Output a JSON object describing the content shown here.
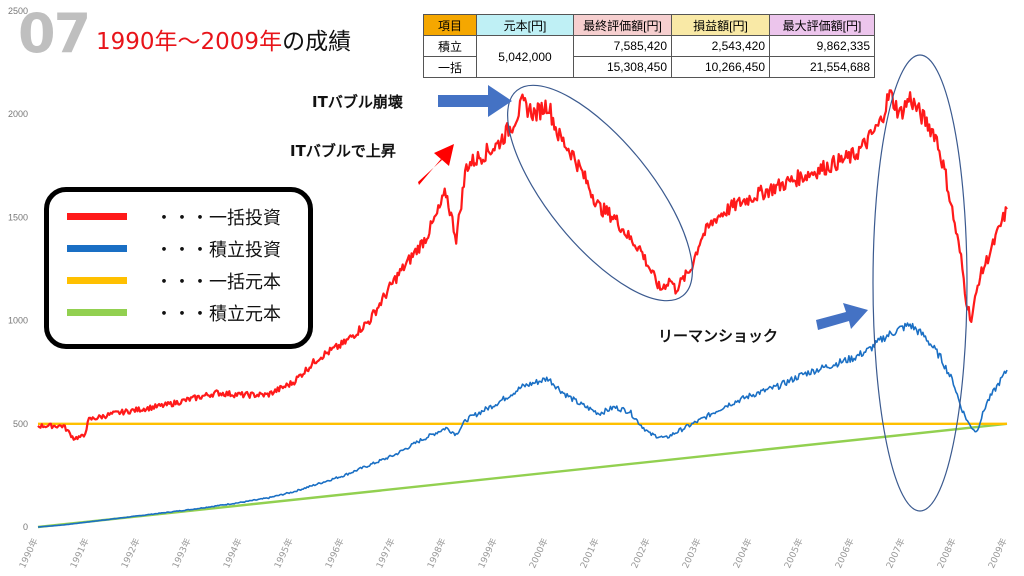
{
  "header": {
    "number": "07",
    "title_red": "1990年～2009年",
    "title_black": "の成績"
  },
  "summary_table": {
    "headers": [
      {
        "label": "項目",
        "color": "#f5a700"
      },
      {
        "label": "元本[円]",
        "color": "#bff0f5"
      },
      {
        "label": "最終評価額[円]",
        "color": "#f6cfcf"
      },
      {
        "label": "損益額[円]",
        "color": "#f9e9a6"
      },
      {
        "label": "最大評価額[円]",
        "color": "#ecc5ec"
      }
    ],
    "principal": "5,042,000",
    "rows": [
      {
        "label": "積立",
        "final": "7,585,420",
        "profit": "2,543,420",
        "max": "9,862,335"
      },
      {
        "label": "一括",
        "final": "15,308,450",
        "profit": "10,266,450",
        "max": "21,554,688"
      }
    ]
  },
  "legend": [
    {
      "label": "・・・一括投資",
      "color": "#ff1a1a"
    },
    {
      "label": "・・・積立投資",
      "color": "#1a6fc4"
    },
    {
      "label": "・・・一括元本",
      "color": "#ffc000"
    },
    {
      "label": "・・・積立元本",
      "color": "#92d050"
    }
  ],
  "annotations": {
    "it_rise": "ITバブルで上昇",
    "it_crash": "ITバブル崩壊",
    "lehman": "リーマンショック"
  },
  "chart_data": {
    "type": "line",
    "xlabel": "",
    "ylabel": "",
    "ylim": [
      0,
      2500
    ],
    "xlim": [
      1990,
      2009
    ],
    "yticks": [
      0,
      500,
      1000,
      1500,
      2000,
      2500
    ],
    "xticks": [
      "1990年",
      "1991年",
      "1992年",
      "1993年",
      "1994年",
      "1995年",
      "1996年",
      "1997年",
      "1998年",
      "1999年",
      "2000年",
      "2001年",
      "2002年",
      "2003年",
      "2004年",
      "2005年",
      "2006年",
      "2007年",
      "2008年",
      "2009年"
    ],
    "grid": false,
    "series": [
      {
        "name": "一括投資",
        "color": "#ff1a1a",
        "x": [
          1990,
          1990.5,
          1990.7,
          1990.9,
          1991,
          1991.5,
          1992,
          1992.5,
          1993,
          1993.5,
          1994,
          1994.5,
          1995,
          1995.5,
          1996,
          1996.5,
          1997,
          1997.3,
          1997.6,
          1997.8,
          1998,
          1998.2,
          1998.4,
          1998.7,
          1999,
          1999.3,
          1999.5,
          1999.75,
          2000,
          2000.2,
          2000.5,
          2000.8,
          2001,
          2001.3,
          2001.6,
          2001.8,
          2002,
          2002.2,
          2002.4,
          2002.5,
          2002.8,
          2003,
          2003.3,
          2003.6,
          2004,
          2004.5,
          2005,
          2005.5,
          2006,
          2006.2,
          2006.5,
          2006.7,
          2006.9,
          2007.1,
          2007.3,
          2007.6,
          2007.8,
          2007.95,
          2008.1,
          2008.2,
          2008.3,
          2008.45,
          2008.7,
          2009
        ],
        "values": [
          490,
          490,
          430,
          440,
          520,
          550,
          570,
          590,
          620,
          650,
          640,
          640,
          700,
          820,
          890,
          1000,
          1200,
          1300,
          1400,
          1500,
          1620,
          1400,
          1750,
          1800,
          1850,
          1950,
          2050,
          2000,
          2050,
          1900,
          1800,
          1650,
          1550,
          1500,
          1400,
          1350,
          1250,
          1150,
          1200,
          1150,
          1250,
          1400,
          1500,
          1550,
          1600,
          1650,
          1700,
          1750,
          1800,
          1850,
          1950,
          2100,
          2000,
          2080,
          2000,
          1900,
          1700,
          1500,
          1300,
          1100,
          1000,
          1200,
          1350,
          1540
        ]
      },
      {
        "name": "積立投資",
        "color": "#1a6fc4",
        "x": [
          1990,
          1990.5,
          1991,
          1992,
          1993,
          1994,
          1994.5,
          1995,
          1995.5,
          1996,
          1996.5,
          1997,
          1997.5,
          1998,
          1998.2,
          1998.4,
          1998.7,
          1999,
          1999.5,
          2000,
          2000.3,
          2000.6,
          2001,
          2001.3,
          2001.6,
          2001.8,
          2002,
          2002.3,
          2002.6,
          2003,
          2003.5,
          2004,
          2004.5,
          2005,
          2005.5,
          2006,
          2006.3,
          2006.6,
          2006.9,
          2007.1,
          2007.4,
          2007.7,
          2007.95,
          2008.1,
          2008.25,
          2008.4,
          2008.6,
          2008.8,
          2009
        ],
        "values": [
          0,
          10,
          25,
          55,
          85,
          120,
          140,
          170,
          210,
          250,
          300,
          350,
          420,
          480,
          450,
          520,
          560,
          600,
          680,
          720,
          650,
          600,
          550,
          580,
          560,
          500,
          450,
          430,
          470,
          520,
          590,
          640,
          680,
          740,
          780,
          820,
          860,
          920,
          960,
          980,
          920,
          820,
          700,
          580,
          500,
          460,
          600,
          680,
          760
        ]
      },
      {
        "name": "一括元本",
        "color": "#ffc000",
        "x": [
          1990,
          2009
        ],
        "values": [
          500,
          500
        ]
      },
      {
        "name": "積立元本",
        "color": "#92d050",
        "x": [
          1990,
          2009
        ],
        "values": [
          0,
          500
        ]
      }
    ]
  }
}
